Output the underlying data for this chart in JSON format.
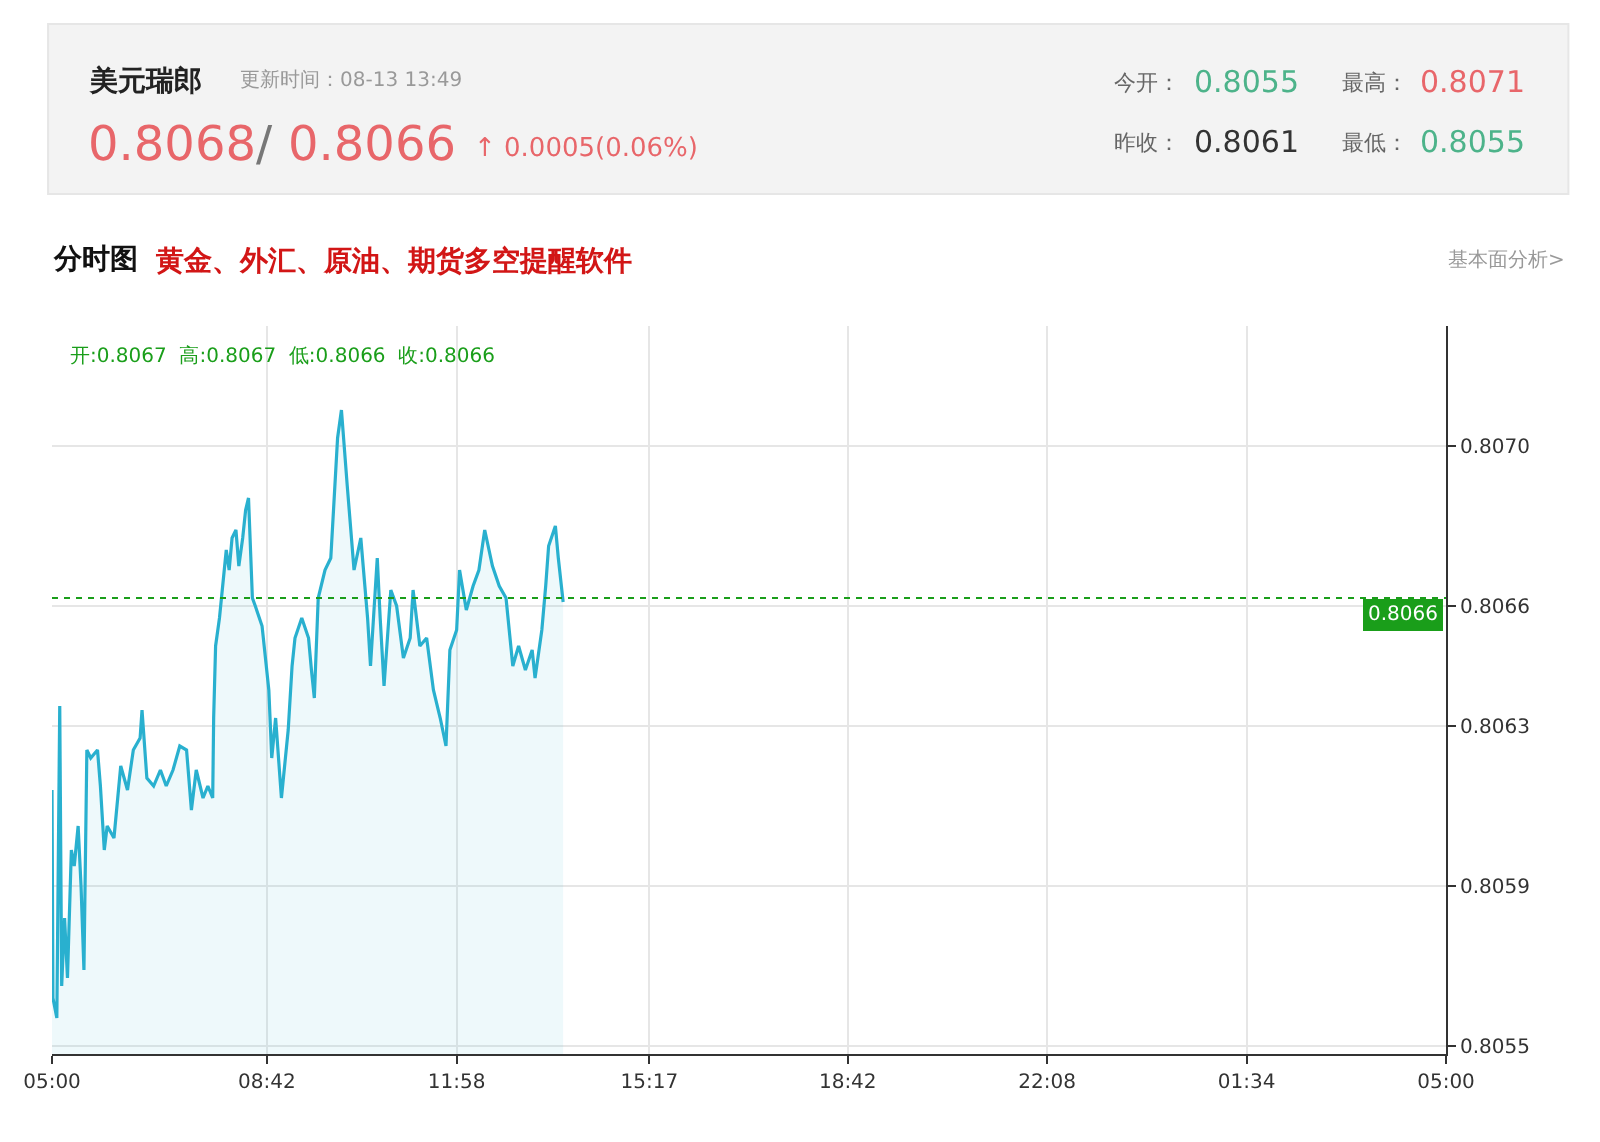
{
  "chart_data": {
    "type": "area",
    "annotations": [
      "美元瑞郎",
      "更新时间：08-13 13:49",
      "0.8068",
      "/",
      "0.8066",
      "↑ 0.0005(0.06%)",
      "今开：",
      "0.8055",
      "最高：",
      "0.8071",
      "昨收：",
      "0.8061",
      "最低：",
      "0.8055",
      "分时图",
      "黄金、外汇、原油、期货多空提醒软件",
      "基本面分析>",
      "开:0.8067  高:0.8067  低:0.8066  收:0.8066"
    ],
    "series": [
      {
        "color": "#29b0cf",
        "x": [
          "--08-13T05:00",
          "--08-13T05:01",
          "--08-13T05:05",
          "--08-13T05:08",
          "--08-13T05:10",
          "--08-13T05:13",
          "--08-13T05:16",
          "--08-13T05:20",
          "--08-13T05:23",
          "--08-13T05:27",
          "--08-13T05:30",
          "--08-13T05:33",
          "--08-13T05:36",
          "--08-13T05:40",
          "--08-13T05:47",
          "--08-13T05:50",
          "--08-13T05:54",
          "--08-13T05:57",
          "--08-13T06:04",
          "--08-13T06:11",
          "--08-13T06:18",
          "--08-13T06:24",
          "--08-13T06:31",
          "--08-13T06:33",
          "--08-13T06:38",
          "--08-13T06:45",
          "--08-13T06:52",
          "--08-13T06:58",
          "--08-13T07:05",
          "--08-13T07:12",
          "--08-13T07:19",
          "--08-13T07:24",
          "--08-13T07:29",
          "--08-13T07:36",
          "--08-13T07:41",
          "--08-13T07:46",
          "--08-13T07:47",
          "--08-13T07:49",
          "--08-13T07:53",
          "--08-13T08:00",
          "--08-13T08:03",
          "--08-13T08:06",
          "--08-13T08:10",
          "--08-13T08:13",
          "--08-13T08:17",
          "--08-13T08:20",
          "--08-13T08:23",
          "--08-13T08:27",
          "--08-13T08:30",
          "--08-13T08:37",
          "--08-13T08:44",
          "--08-13T08:47",
          "--08-13T08:51",
          "--08-13T08:57",
          "--08-13T09:04",
          "--08-13T09:08",
          "--08-13T09:11",
          "--08-13T09:18",
          "--08-13T09:25",
          "--08-13T09:28",
          "--08-13T09:31",
          "--08-13T09:35",
          "--08-13T09:42",
          "--08-13T09:48",
          "--08-13T09:55",
          "--08-13T09:59",
          "--08-13T10:05",
          "--08-13T10:12",
          "--08-13T10:19",
          "--08-13T10:26",
          "--08-13T10:29",
          "--08-13T10:36",
          "--08-13T10:39",
          "--08-13T10:43",
          "--08-13T10:50",
          "--08-13T10:56",
          "--08-13T11:03",
          "--08-13T11:10",
          "--08-13T11:13",
          "--08-13T11:20",
          "--08-13T11:27",
          "--08-13T11:34",
          "--08-13T11:41",
          "--08-13T11:47",
          "--08-13T11:51",
          "--08-13T11:58",
          "--08-13T12:01",
          "--08-13T12:08",
          "--08-13T12:15",
          "--08-13T12:21",
          "--08-13T12:27",
          "--08-13T12:35",
          "--08-13T12:42",
          "--08-13T12:49",
          "--08-13T12:56",
          "--08-13T13:02",
          "--08-13T13:09",
          "--08-13T13:16",
          "--08-13T13:19",
          "--08-13T13:26",
          "--08-13T13:30",
          "--08-13T13:33",
          "--08-13T13:40",
          "--08-13T13:43",
          "--08-13T13:48"
        ],
        "values": [
          0.80614,
          0.80562,
          0.80557,
          0.80635,
          0.80565,
          0.80582,
          0.80567,
          0.80599,
          0.80595,
          0.80605,
          0.8059,
          0.80569,
          0.80624,
          0.80622,
          0.80624,
          0.80615,
          0.80599,
          0.80605,
          0.80602,
          0.8062,
          0.80614,
          0.80624,
          0.80627,
          0.80634,
          0.80617,
          0.80615,
          0.80619,
          0.80615,
          0.80619,
          0.80625,
          0.80624,
          0.80609,
          0.80619,
          0.80612,
          0.80615,
          0.80612,
          0.80632,
          0.8065,
          0.80657,
          0.80674,
          0.80669,
          0.80677,
          0.80679,
          0.8067,
          0.80677,
          0.80684,
          0.80687,
          0.80662,
          0.8066,
          0.80655,
          0.80639,
          0.80622,
          0.80632,
          0.80612,
          0.80629,
          0.80645,
          0.80652,
          0.80657,
          0.80652,
          0.80644,
          0.80637,
          0.80662,
          0.80669,
          0.80672,
          0.80702,
          0.80709,
          0.8069,
          0.80669,
          0.80677,
          0.80657,
          0.80645,
          0.80672,
          0.80657,
          0.8064,
          0.80664,
          0.8066,
          0.80647,
          0.80652,
          0.80664,
          0.8065,
          0.80652,
          0.80639,
          0.80632,
          0.80625,
          0.80649,
          0.80654,
          0.80669,
          0.80659,
          0.80665,
          0.80669,
          0.80679,
          0.8067,
          0.80665,
          0.80662,
          0.80645,
          0.8065,
          0.80644,
          0.80649,
          0.80642,
          0.80654,
          0.80665,
          0.80675,
          0.8068,
          0.80672,
          0.80661
        ]
      }
    ],
    "xlim": [
      "--08-13T05:00",
      "--08-14T05:00"
    ],
    "xticks": [
      {
        "value": "--08-13T05:00",
        "label": "05:00"
      },
      {
        "value": "--08-13T08:42",
        "label": "08:42"
      },
      {
        "value": "--08-13T11:58",
        "label": "11:58"
      },
      {
        "value": "--08-13T15:17",
        "label": "15:17"
      },
      {
        "value": "--08-13T18:42",
        "label": "18:42"
      },
      {
        "value": "--08-13T22:08",
        "label": "22:08"
      },
      {
        "value": "--08-14T01:34",
        "label": "01:34"
      },
      {
        "value": "--08-14T05:00",
        "label": "05:00"
      }
    ],
    "ylim": [
      0.80548,
      0.8073
    ],
    "yticks": [
      0.8055,
      0.8059,
      0.8063,
      0.8066,
      {
        "value": 0.807,
        "label": "0.8070"
      }
    ],
    "ref_lines": [
      {
        "axis": "y",
        "value": 0.80662,
        "label": "0.8066",
        "color": "#1a9e1a",
        "line_style": "dotted"
      }
    ],
    "grid": true,
    "marker": "none",
    "line_style": "solid"
  }
}
